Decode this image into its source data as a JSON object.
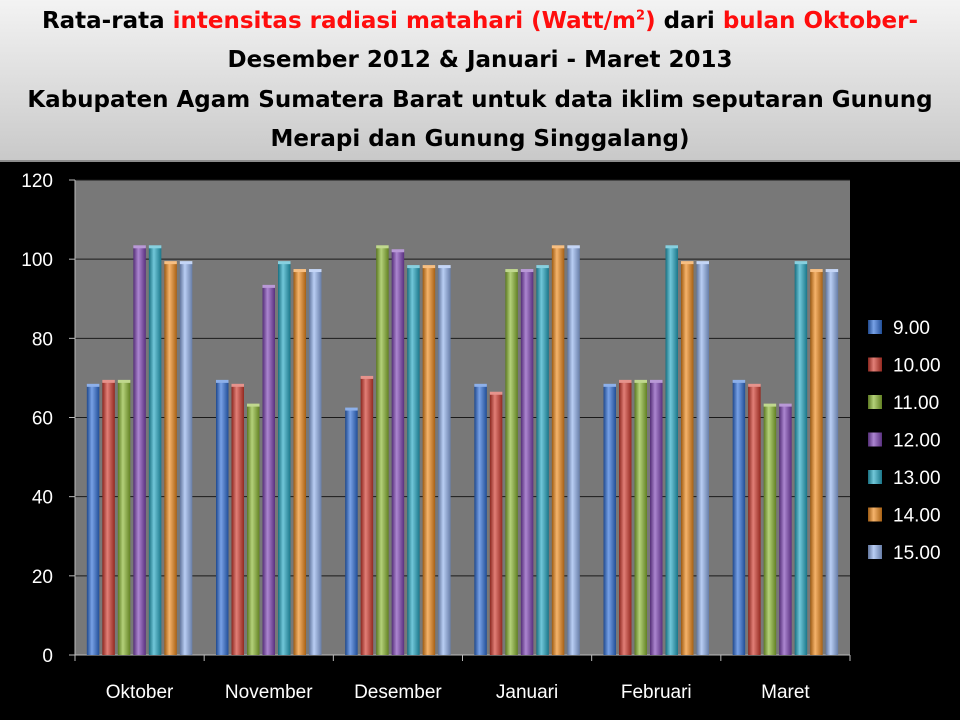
{
  "title": {
    "line1": {
      "part1": "Rata-rata ",
      "part2": "intensitas radiasi matahari (Watt/m",
      "part2_sup": "2",
      "part2_end": ")",
      "part3": " dari ",
      "part4": "bulan Oktober-"
    },
    "line2": "Desember 2012 & Januari - Maret 2013",
    "line3": "Kabupaten Agam Sumatera Barat untuk data iklim seputaran Gunung",
    "line4": "Merapi dan Gunung Singgalang)"
  },
  "colors": {
    "title_text": "#000000",
    "title_highlight": "#ff0d0d",
    "background": "#000000",
    "plot_area": "#787878",
    "axis_text": "#ffffff"
  },
  "chart_data": {
    "type": "bar",
    "categories": [
      "Oktober",
      "November",
      "Desember",
      "Januari",
      "Februari",
      "Maret"
    ],
    "ylim": [
      0,
      120
    ],
    "yticks": [
      "0",
      "20",
      "40",
      "60",
      "80",
      "100",
      "120"
    ],
    "grid": true,
    "legend_position": "right",
    "series": [
      {
        "name": "9.00",
        "color": "#2f6fd8",
        "values": [
          68,
          69,
          62,
          68,
          68,
          69
        ]
      },
      {
        "name": "10.00",
        "color": "#d23a2e",
        "values": [
          69,
          68,
          70,
          66,
          69,
          68
        ]
      },
      {
        "name": "11.00",
        "color": "#8cb832",
        "values": [
          69,
          63,
          103,
          97,
          69,
          63
        ]
      },
      {
        "name": "12.00",
        "color": "#7f45b6",
        "values": [
          103,
          93,
          102,
          97,
          69,
          63
        ]
      },
      {
        "name": "13.00",
        "color": "#25a9c4",
        "values": [
          103,
          99,
          98,
          98,
          103,
          99
        ]
      },
      {
        "name": "14.00",
        "color": "#f08a1c",
        "values": [
          99,
          97,
          98,
          103,
          99,
          97
        ]
      },
      {
        "name": "15.00",
        "color": "#93b3ee",
        "values": [
          99,
          97,
          98,
          103,
          99,
          97
        ]
      }
    ]
  }
}
